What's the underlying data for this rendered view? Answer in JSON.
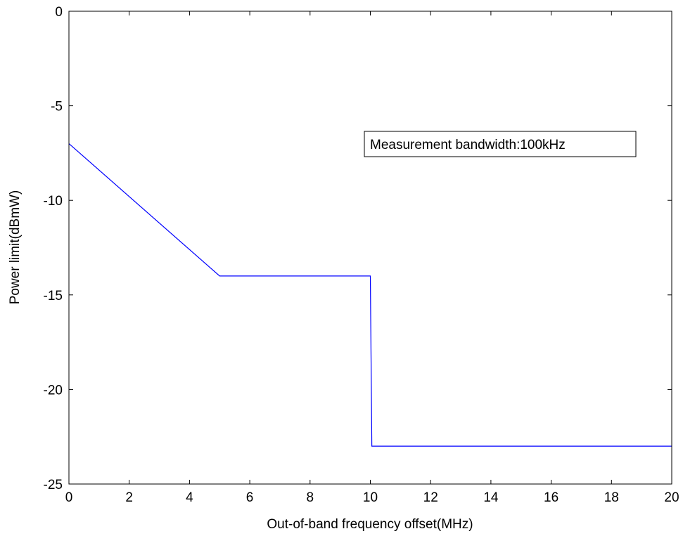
{
  "chart_data": {
    "type": "line",
    "title": "",
    "xlabel": "Out-of-band frequency offset(MHz)",
    "ylabel": "Power limit(dBmW)",
    "xlim": [
      0,
      20
    ],
    "ylim": [
      -25,
      0
    ],
    "x_ticks": [
      0,
      2,
      4,
      6,
      8,
      10,
      12,
      14,
      16,
      18,
      20
    ],
    "y_ticks": [
      0,
      -5,
      -10,
      -15,
      -20,
      -25
    ],
    "grid": false,
    "series": [
      {
        "color": "#0000ff",
        "x": [
          0,
          5,
          10,
          10.05,
          20
        ],
        "y": [
          -7,
          -14,
          -14,
          -23,
          -23
        ]
      }
    ],
    "annotations": [
      {
        "text": "Measurement bandwidth:100kHz",
        "x": 15,
        "y": -7
      }
    ]
  }
}
